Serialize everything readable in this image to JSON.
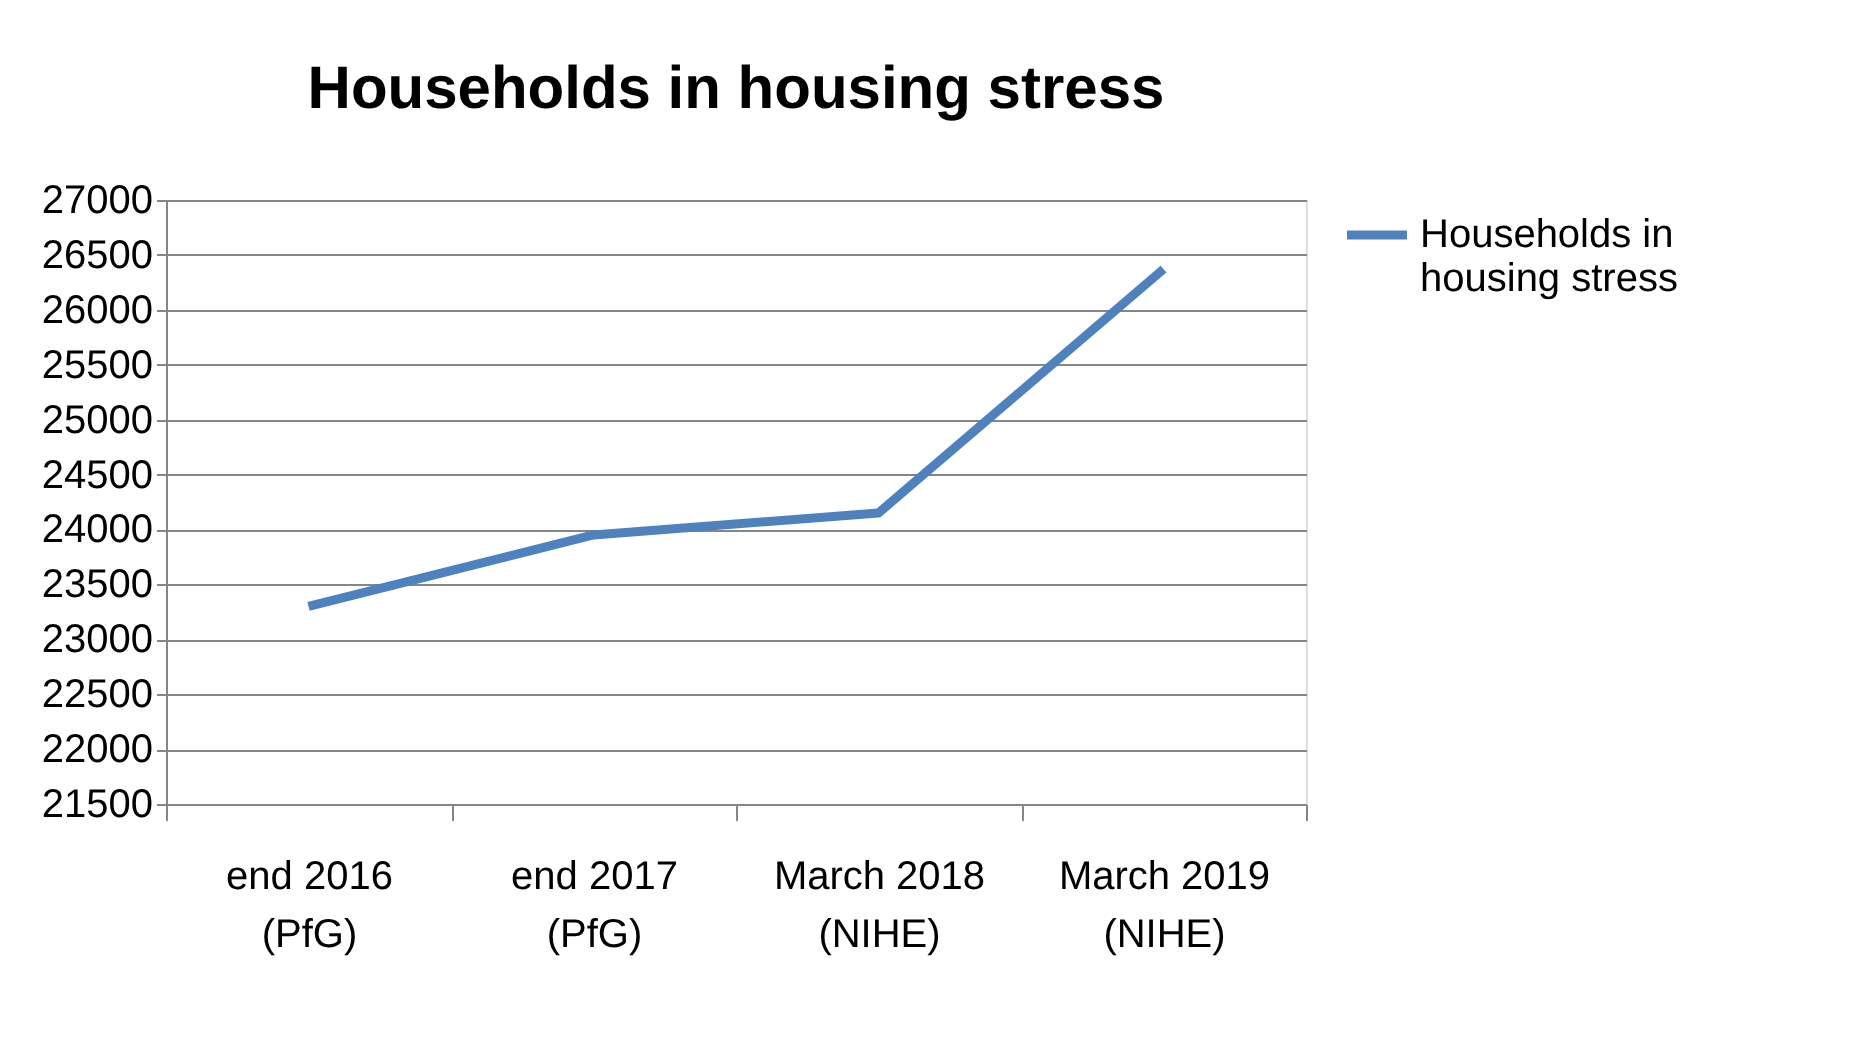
{
  "chart_data": {
    "type": "line",
    "title": "Households in housing stress",
    "categories": [
      "end 2016 (PfG)",
      "end 2017 (PfG)",
      "March 2018 (NIHE)",
      "March 2019 (NIHE)"
    ],
    "series": [
      {
        "name": "Households in housing stress",
        "color": "#4f81bd",
        "values": [
          23300,
          23950,
          24150,
          26370
        ]
      }
    ],
    "ylim": [
      21500,
      27000
    ],
    "yticks": [
      21500,
      22000,
      22500,
      23000,
      23500,
      24000,
      24500,
      25000,
      25500,
      26000,
      26500,
      27000
    ],
    "grid": "y",
    "legend": "right",
    "marker": "none",
    "line_style": "solid"
  }
}
